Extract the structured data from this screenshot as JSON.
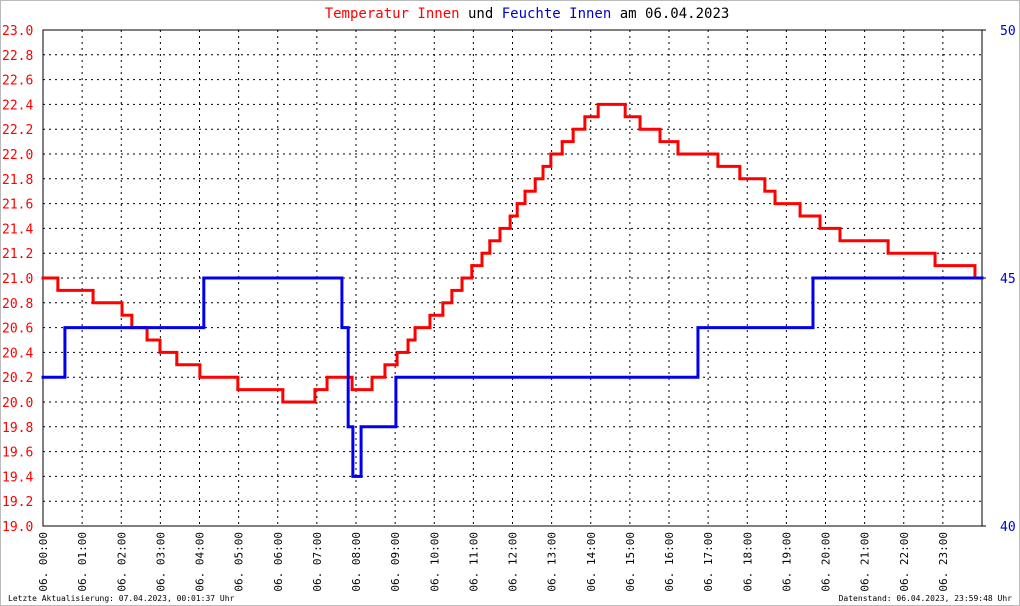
{
  "chart_data": {
    "type": "step",
    "title_joiner": "und",
    "title_suffix": "am 06.04.2023",
    "footer_left": "Letzte Aktualisierung: 07.04.2023, 00:01:37 Uhr",
    "footer_right": "Datenstand: 06.04.2023, 23:59:48 Uhr",
    "xlim": [
      0,
      24
    ],
    "xticks": [
      {
        "value": 0,
        "label": "06. 00:00"
      },
      {
        "value": 1,
        "label": "06. 01:00"
      },
      {
        "value": 2,
        "label": "06. 02:00"
      },
      {
        "value": 3,
        "label": "06. 03:00"
      },
      {
        "value": 4,
        "label": "06. 04:00"
      },
      {
        "value": 5,
        "label": "06. 05:00"
      },
      {
        "value": 6,
        "label": "06. 06:00"
      },
      {
        "value": 7,
        "label": "06. 07:00"
      },
      {
        "value": 8,
        "label": "06. 08:00"
      },
      {
        "value": 9,
        "label": "06. 09:00"
      },
      {
        "value": 10,
        "label": "06. 10:00"
      },
      {
        "value": 11,
        "label": "06. 11:00"
      },
      {
        "value": 12,
        "label": "06. 12:00"
      },
      {
        "value": 13,
        "label": "06. 13:00"
      },
      {
        "value": 14,
        "label": "06. 14:00"
      },
      {
        "value": 15,
        "label": "06. 15:00"
      },
      {
        "value": 16,
        "label": "06. 16:00"
      },
      {
        "value": 17,
        "label": "06. 17:00"
      },
      {
        "value": 18,
        "label": "06. 18:00"
      },
      {
        "value": 19,
        "label": "06. 19:00"
      },
      {
        "value": 20,
        "label": "06. 20:00"
      },
      {
        "value": 21,
        "label": "06. 21:00"
      },
      {
        "value": 22,
        "label": "06. 22:00"
      },
      {
        "value": 23,
        "label": "06. 23:00"
      }
    ],
    "ylim": [
      19.0,
      23.0
    ],
    "yticks": [
      {
        "value": 19.0,
        "label": "19.0"
      },
      19.2,
      19.4,
      19.6,
      19.8,
      {
        "value": 20.0,
        "label": "20.0"
      },
      20.2,
      20.4,
      20.6,
      20.8,
      {
        "value": 21.0,
        "label": "21.0"
      },
      21.2,
      21.4,
      21.6,
      21.8,
      {
        "value": 22.0,
        "label": "22.0"
      },
      22.2,
      22.4,
      22.6,
      22.8,
      {
        "value": 23.0,
        "label": "23.0"
      }
    ],
    "y2lim": [
      40,
      50
    ],
    "y2ticks": [
      40,
      45,
      50
    ],
    "grid": true,
    "y_color": "#ff0000",
    "y2_color": "#0000cc",
    "series": [
      {
        "name": "Temperatur Innen",
        "color": "#ff0000",
        "x": [
          0,
          0.38,
          1.28,
          2.02,
          2.27,
          2.66,
          2.99,
          3.42,
          4.01,
          4.98,
          6.13,
          6.95,
          7.26,
          7.9,
          8.41,
          8.74,
          9.05,
          9.33,
          9.51,
          9.89,
          10.22,
          10.45,
          10.71,
          10.96,
          11.22,
          11.42,
          11.68,
          11.94,
          12.12,
          12.32,
          12.58,
          12.78,
          12.98,
          13.27,
          13.55,
          13.85,
          14.19,
          14.88,
          15.26,
          15.77,
          16.23,
          17.25,
          17.81,
          18.45,
          18.71,
          19.35,
          19.86,
          20.37,
          21.6,
          22.8,
          23.82
        ],
        "values": [
          21.0,
          20.9,
          20.8,
          20.7,
          20.6,
          20.5,
          20.4,
          20.3,
          20.2,
          20.1,
          20.0,
          20.1,
          20.2,
          20.1,
          20.2,
          20.3,
          20.4,
          20.5,
          20.6,
          20.7,
          20.8,
          20.9,
          21.0,
          21.1,
          21.2,
          21.3,
          21.4,
          21.5,
          21.6,
          21.7,
          21.8,
          21.9,
          22.0,
          22.1,
          22.2,
          22.3,
          22.4,
          22.3,
          22.2,
          22.1,
          22.0,
          21.9,
          21.8,
          21.7,
          21.6,
          21.5,
          21.4,
          21.3,
          21.2,
          21.1,
          21.0
        ]
      },
      {
        "name": "Feuchte Innen",
        "color": "#0000ee",
        "axis": "y2",
        "x": [
          0,
          0.56,
          4.11,
          7.64,
          7.8,
          7.92,
          8.13,
          9.02,
          16.74,
          19.68
        ],
        "values": [
          43,
          44,
          45,
          44,
          42,
          41,
          42,
          43,
          44,
          45
        ]
      }
    ]
  }
}
